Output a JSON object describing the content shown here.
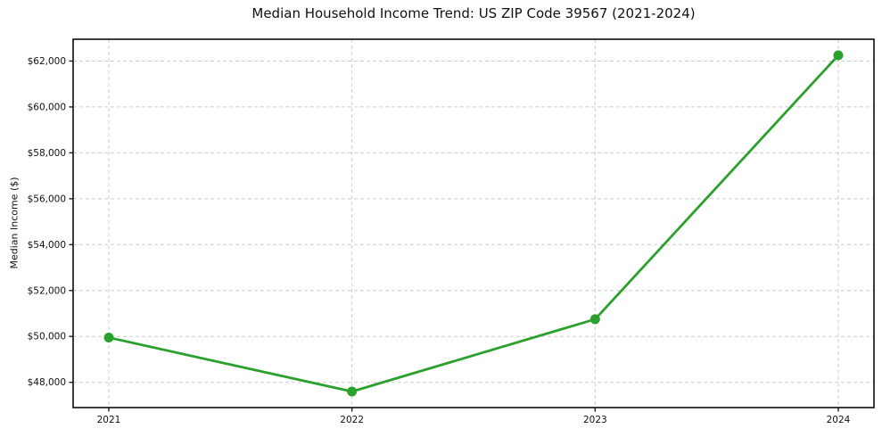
{
  "page": {
    "title": "Median Household Income Trend: US ZIP Code 39567 (2021-2024)"
  },
  "chart_data": {
    "type": "line",
    "title": "Median Household Income Trend: US ZIP Code 39567 (2021-2024)",
    "xlabel": "",
    "ylabel": "Median Income ($)",
    "categories": [
      "2021",
      "2022",
      "2023",
      "2024"
    ],
    "series": [
      {
        "name": "Median Household Income",
        "values": [
          49950,
          47600,
          50750,
          62250
        ]
      }
    ],
    "ylim": [
      46900,
      62950
    ],
    "yticks": [
      48000,
      50000,
      52000,
      54000,
      56000,
      58000,
      60000,
      62000
    ],
    "ytick_labels": [
      "$48,000",
      "$50,000",
      "$52,000",
      "$54,000",
      "$56,000",
      "$58,000",
      "$60,000",
      "$62,000"
    ],
    "grid": "dashed",
    "legend": "none",
    "colors": {
      "line": "#2ca02c",
      "marker": "#2ca02c",
      "grid": "#cdcdcd",
      "spine": "#1a1a1a",
      "text": "#111111",
      "background": "#ffffff"
    }
  }
}
